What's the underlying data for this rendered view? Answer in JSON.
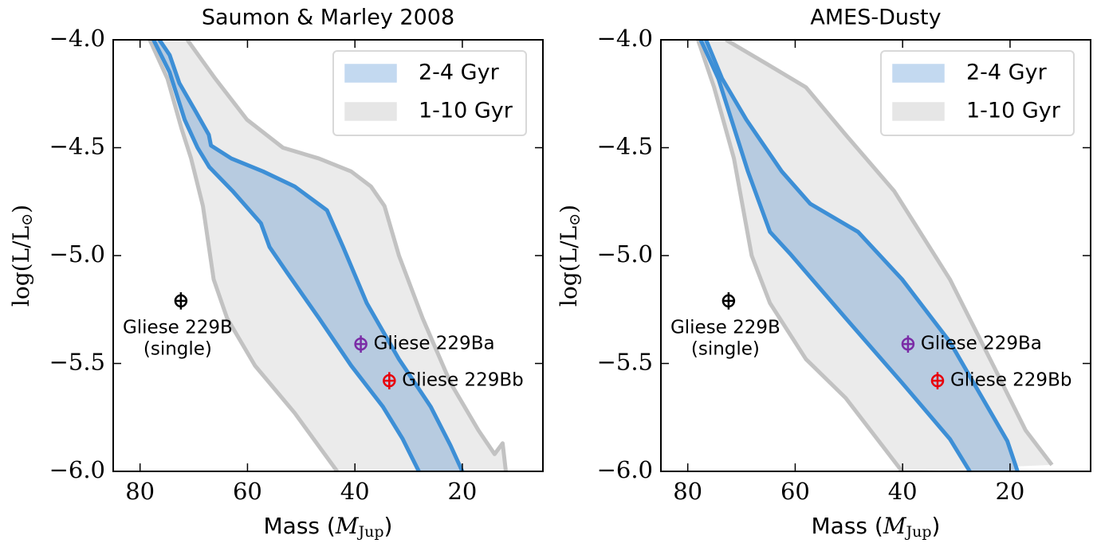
{
  "chart_data": [
    {
      "type": "band",
      "title": "Saumon & Marley 2008",
      "xlabel": [
        "Mass (",
        "M",
        "Jup",
        ")"
      ],
      "ylabel": [
        "log(L/L",
        "⊙",
        ")"
      ],
      "xlim": [
        85,
        5
      ],
      "ylim": [
        -6,
        -4
      ],
      "xticks": [
        80,
        60,
        40,
        20
      ],
      "yticks": [
        {
          "value": -4,
          "label": "−4.0"
        },
        {
          "value": -4.5,
          "label": "−4.5"
        },
        {
          "value": -5,
          "label": "−5.0"
        },
        {
          "value": -5.5,
          "label": "−5.5"
        },
        {
          "value": -6,
          "label": "−6.0"
        }
      ],
      "legend": "upper right",
      "bands": [
        {
          "name": "2-4 Gyr",
          "color": "#3d8fd6",
          "fill": "#b7cbe0",
          "legend_fill": "#c3d9f0",
          "bounds": [
            {
              "x": [
                77.5,
                74.5,
                71.7,
                69.3,
                67.1,
                62.8,
                57.5,
                55.9,
                52.6,
                46.7,
                40.7,
                34.8,
                31.1,
                28.1
              ],
              "y": [
                -4.0,
                -4.15,
                -4.37,
                -4.5,
                -4.59,
                -4.7,
                -4.85,
                -4.96,
                -5.08,
                -5.29,
                -5.51,
                -5.7,
                -5.85,
                -6.0
              ]
            },
            {
              "x": [
                76.4,
                74.5,
                72.7,
                69.7,
                67.2,
                66.8,
                63.0,
                57.1,
                51.2,
                45.2,
                42.2,
                37.8,
                31.8,
                25.9,
                22.2,
                20.0
              ],
              "y": [
                -4.0,
                -4.07,
                -4.2,
                -4.33,
                -4.44,
                -4.49,
                -4.55,
                -4.61,
                -4.68,
                -4.79,
                -4.96,
                -5.22,
                -5.48,
                -5.7,
                -5.88,
                -6.0
              ]
            }
          ]
        },
        {
          "name": "1-10 Gyr",
          "color": "#c2c2c2",
          "fill": "#ebebeb",
          "legend_fill": "#e6e6e6",
          "bounds": [
            {
              "x": [
                78.2,
                74.9,
                72.3,
                70.5,
                68.3,
                66.3,
                63.8,
                58.6,
                51.2,
                43.3
              ],
              "y": [
                -4.0,
                -4.18,
                -4.41,
                -4.55,
                -4.77,
                -5.11,
                -5.29,
                -5.51,
                -5.73,
                -6.0
              ]
            },
            {
              "x": [
                71.2,
                66.0,
                60.1,
                53.4,
                46.7,
                40.7,
                37.0,
                34.5,
                31.8,
                27.4,
                22.2,
                17.0,
                14.0,
                12.5,
                11.9
              ],
              "y": [
                -4.0,
                -4.18,
                -4.37,
                -4.5,
                -4.55,
                -4.61,
                -4.68,
                -4.77,
                -5.0,
                -5.29,
                -5.59,
                -5.81,
                -5.92,
                -5.87,
                -6.0
              ]
            }
          ]
        }
      ],
      "points": [
        {
          "label": [
            "Gliese 229B",
            "(single)"
          ],
          "x": 72.4,
          "y": -5.21,
          "xerr": 1.0,
          "yerr": 0.04,
          "color": "#000000"
        },
        {
          "label": [
            "Gliese 229Ba"
          ],
          "x": 38.9,
          "y": -5.41,
          "xerr": 1.0,
          "yerr": 0.04,
          "color": "#7b2ca6"
        },
        {
          "label": [
            "Gliese 229Bb"
          ],
          "x": 33.6,
          "y": -5.58,
          "xerr": 1.0,
          "yerr": 0.04,
          "color": "#e8000b"
        }
      ]
    },
    {
      "type": "band",
      "title": "AMES-Dusty",
      "xlabel": [
        "Mass (",
        "M",
        "Jup",
        ")"
      ],
      "ylabel": [
        "log(L/L",
        "⊙",
        ")"
      ],
      "xlim": [
        85,
        5
      ],
      "ylim": [
        -6,
        -4
      ],
      "xticks": [
        80,
        60,
        40,
        20
      ],
      "yticks": [
        {
          "value": -4,
          "label": "−4.0"
        },
        {
          "value": -4.5,
          "label": "−4.5"
        },
        {
          "value": -5,
          "label": "−5.0"
        },
        {
          "value": -5.5,
          "label": "−5.5"
        },
        {
          "value": -6,
          "label": "−6.0"
        }
      ],
      "legend": "upper right",
      "bands": [
        {
          "name": "2-4 Gyr",
          "color": "#3d8fd6",
          "fill": "#b7cbe0",
          "legend_fill": "#c3d9f0",
          "bounds": [
            {
              "x": [
                77.6,
                74.3,
                68.8,
                64.7,
                61.0,
                50.6,
                40.1,
                31.2,
                27.5
              ],
              "y": [
                -4.0,
                -4.18,
                -4.61,
                -4.89,
                -4.99,
                -5.29,
                -5.59,
                -5.85,
                -6.0
              ]
            },
            {
              "x": [
                76.6,
                73.6,
                69.1,
                62.5,
                57.2,
                48.3,
                40.1,
                31.2,
                20.5,
                18.6
              ],
              "y": [
                -4.0,
                -4.18,
                -4.37,
                -4.61,
                -4.76,
                -4.89,
                -5.11,
                -5.4,
                -5.86,
                -6.0
              ]
            }
          ]
        },
        {
          "name": "1-10 Gyr",
          "color": "#c2c2c2",
          "fill": "#ebebeb",
          "legend_fill": "#e6e6e6",
          "bounds": [
            {
              "x": [
                78.1,
                75.1,
                71.4,
                68.1,
                64.7,
                58.0,
                50.6,
                40.1
              ],
              "y": [
                -4.0,
                -4.22,
                -4.55,
                -5.0,
                -5.22,
                -5.48,
                -5.66,
                -6.0
              ]
            },
            {
              "x": [
                72.9,
                65.4,
                58.0,
                50.6,
                41.6,
                31.2,
                22.3,
                17.1,
                12.2
              ],
              "y": [
                -4.0,
                -4.11,
                -4.22,
                -4.44,
                -4.7,
                -5.11,
                -5.55,
                -5.81,
                -5.97
              ]
            }
          ]
        }
      ],
      "points": [
        {
          "label": [
            "Gliese 229B",
            "(single)"
          ],
          "x": 72.4,
          "y": -5.21,
          "xerr": 1.0,
          "yerr": 0.04,
          "color": "#000000"
        },
        {
          "label": [
            "Gliese 229Ba"
          ],
          "x": 39.0,
          "y": -5.41,
          "xerr": 1.0,
          "yerr": 0.04,
          "color": "#7b2ca6"
        },
        {
          "label": [
            "Gliese 229Bb"
          ],
          "x": 33.5,
          "y": -5.58,
          "xerr": 1.0,
          "yerr": 0.04,
          "color": "#e8000b"
        }
      ]
    }
  ]
}
